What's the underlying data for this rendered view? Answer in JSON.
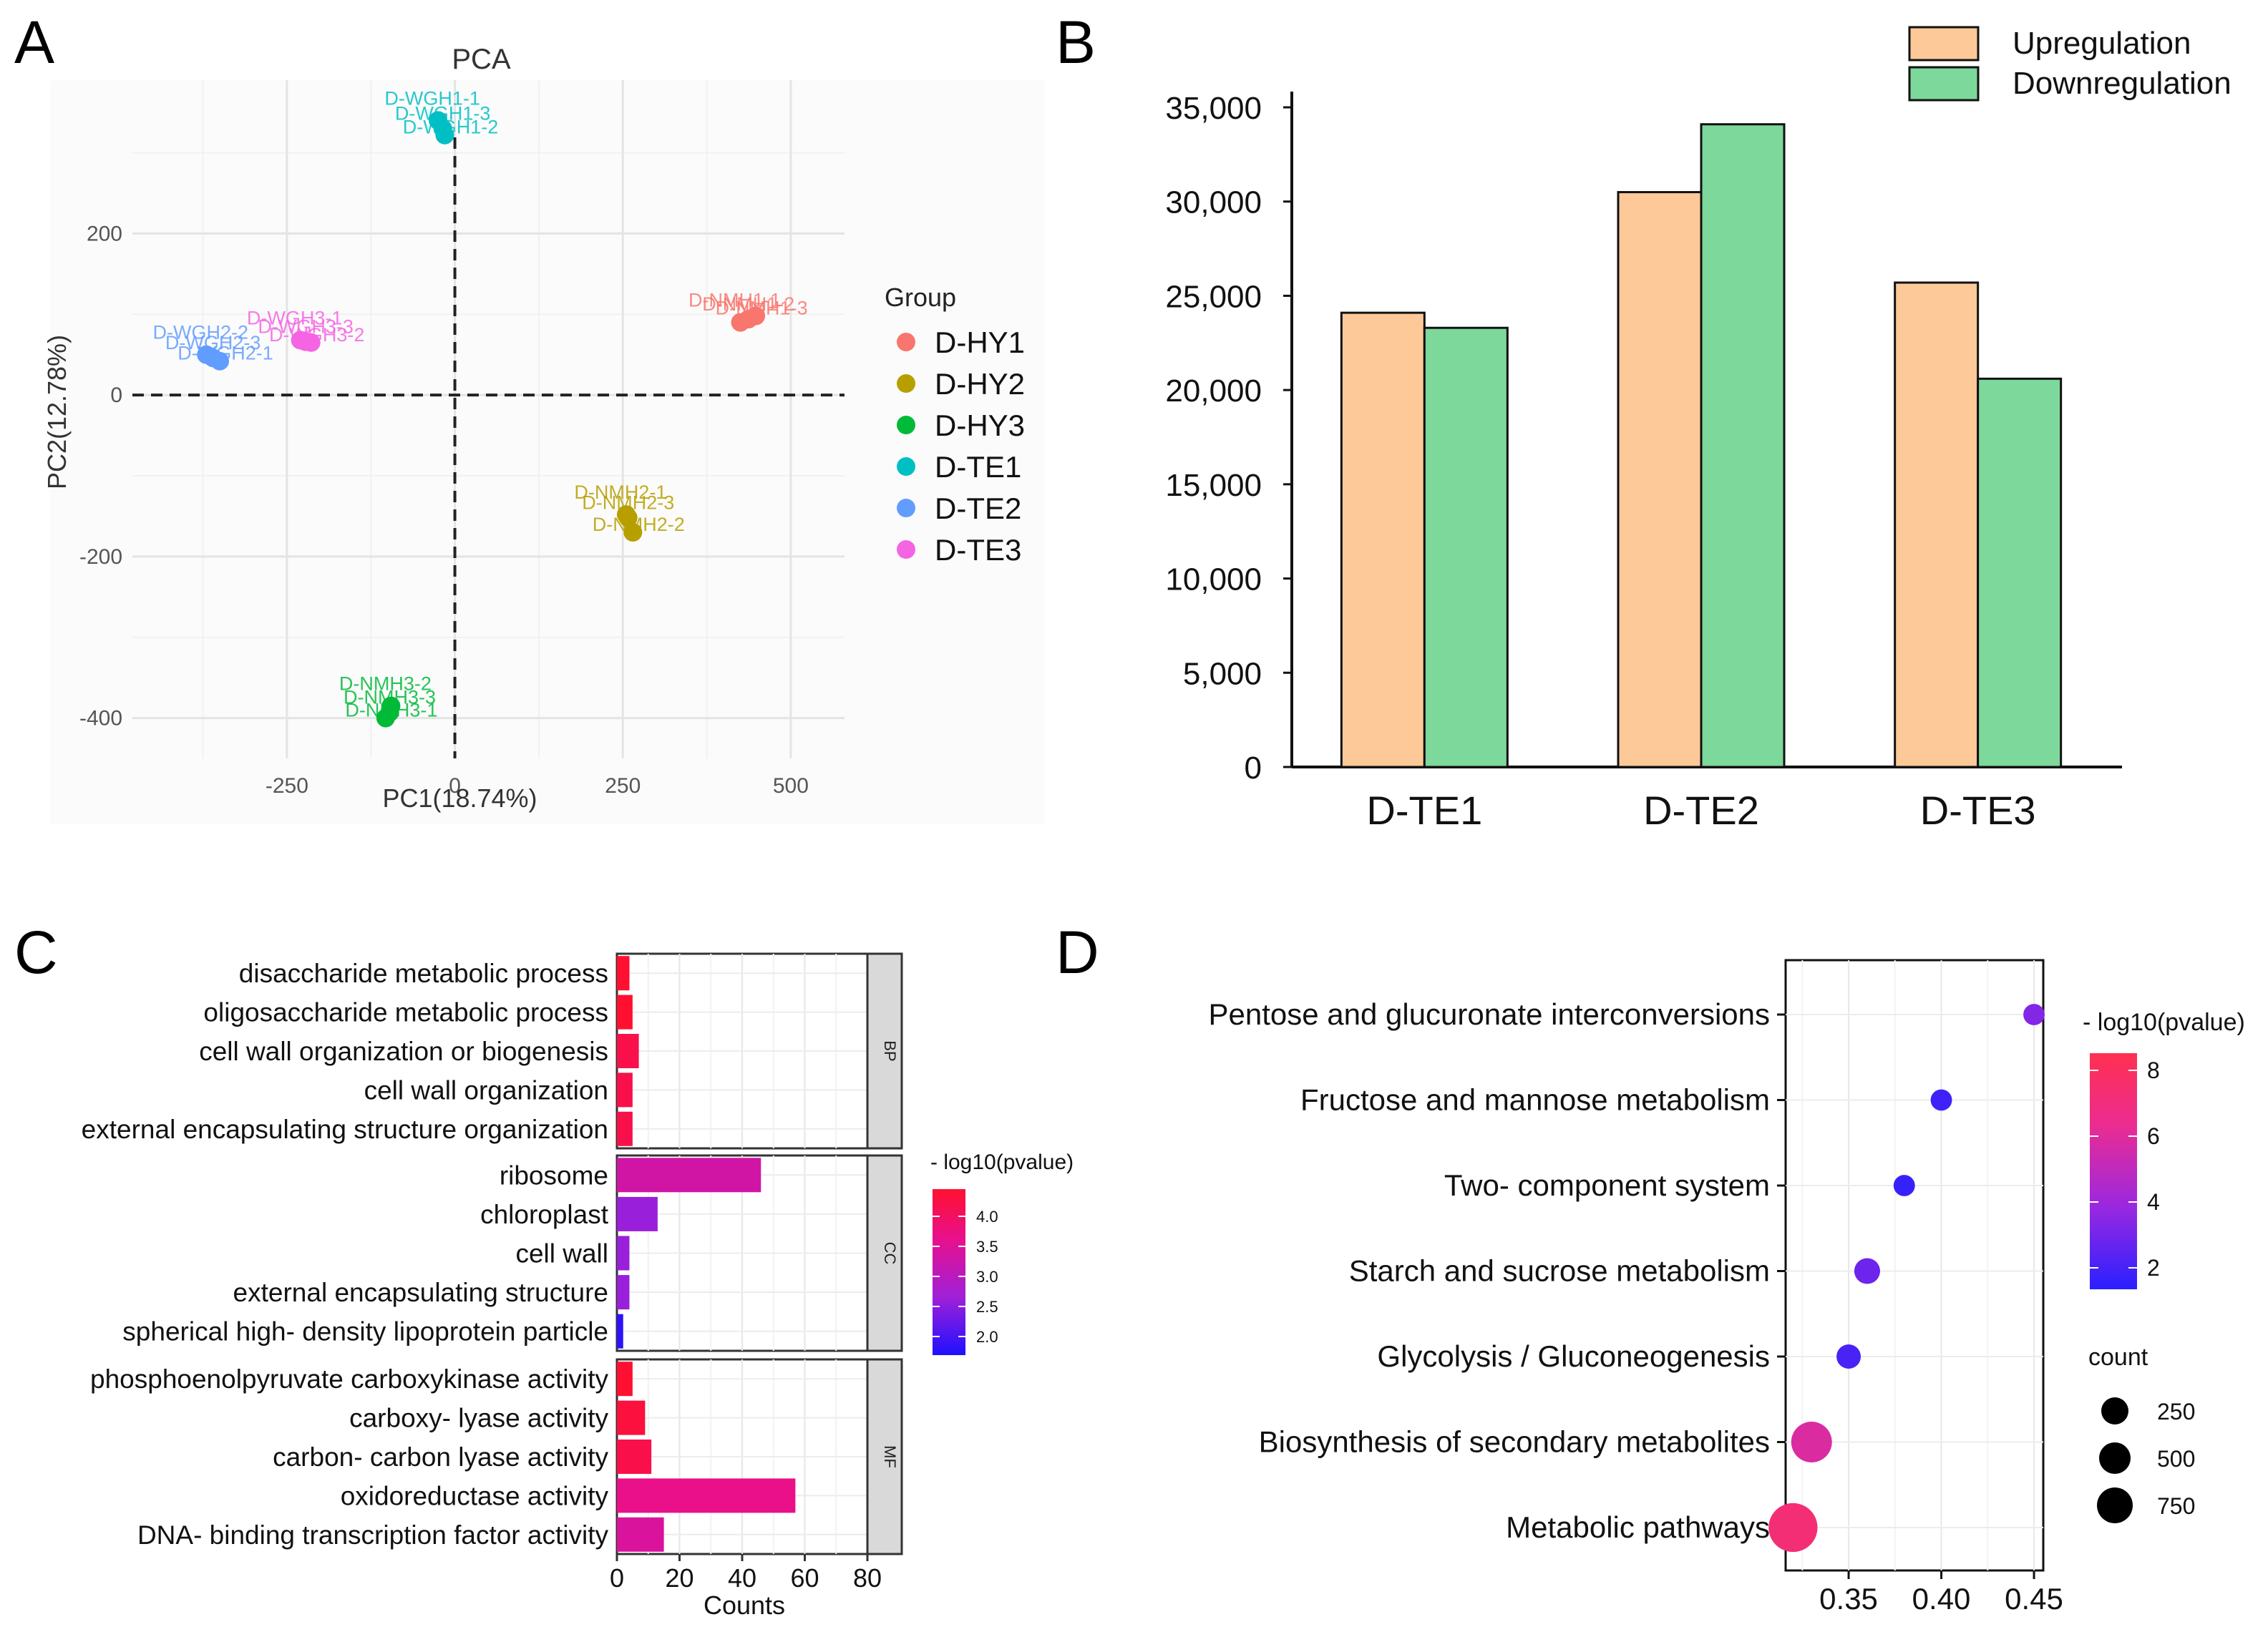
{
  "panel_labels": [
    "A",
    "B",
    "C",
    "D"
  ],
  "chart_data": [
    {
      "panel": "A",
      "type": "scatter",
      "title": "PCA",
      "xlabel": "PC1(18.74%)",
      "ylabel": "PC2(12.78%)",
      "xlim": [
        -480,
        580
      ],
      "ylim": [
        -450,
        390
      ],
      "xticks": [
        -250,
        0,
        250,
        500
      ],
      "yticks": [
        -400,
        -200,
        0,
        200
      ],
      "xtick_labels": [
        "-250",
        "0",
        "250",
        "500"
      ],
      "ytick_labels": [
        "-400",
        "-200",
        "0",
        "200"
      ],
      "legend_title": "Group",
      "groups": [
        {
          "name": "D-HY1",
          "color": "#f8766d",
          "points": [
            {
              "x": 425,
              "y": 90,
              "label": "D-NMH1-1"
            },
            {
              "x": 437,
              "y": 94,
              "label": "D-NMH1-2"
            },
            {
              "x": 448,
              "y": 98,
              "label": "D-NMH1-3"
            }
          ]
        },
        {
          "name": "D-HY2",
          "color": "#b79f00",
          "points": [
            {
              "x": 255,
              "y": -148,
              "label": "D-NMH2-1"
            },
            {
              "x": 258,
              "y": -152,
              "label": "D-NMH2-3"
            },
            {
              "x": 265,
              "y": -170,
              "label": "D-NMH2-2"
            }
          ]
        },
        {
          "name": "D-HY3",
          "color": "#00ba38",
          "points": [
            {
              "x": -95,
              "y": -385,
              "label": "D-NMH3-2"
            },
            {
              "x": -97,
              "y": -393,
              "label": "D-NMH3-3"
            },
            {
              "x": -103,
              "y": -400,
              "label": "D-NMH3-1"
            }
          ]
        },
        {
          "name": "D-TE1",
          "color": "#00bfc4",
          "points": [
            {
              "x": -25,
              "y": 340,
              "label": "D-WGH1-1"
            },
            {
              "x": -18,
              "y": 330,
              "label": "D-WGH1-3"
            },
            {
              "x": -15,
              "y": 322,
              "label": "D-WGH1-2"
            }
          ]
        },
        {
          "name": "D-TE2",
          "color": "#619cff",
          "points": [
            {
              "x": -370,
              "y": 50,
              "label": "D-WGH2-2"
            },
            {
              "x": -360,
              "y": 46,
              "label": "D-WGH2-3"
            },
            {
              "x": -350,
              "y": 42,
              "label": "D-WGH2-1"
            }
          ]
        },
        {
          "name": "D-TE3",
          "color": "#f564e3",
          "points": [
            {
              "x": -230,
              "y": 68,
              "label": "D-WGH3-1"
            },
            {
              "x": -222,
              "y": 66,
              "label": "D-WGH3-3"
            },
            {
              "x": -214,
              "y": 65,
              "label": "D-WGH3-2"
            }
          ]
        }
      ]
    },
    {
      "panel": "B",
      "type": "bar",
      "categories": [
        "D-TE1",
        "D-TE2",
        "D-TE3"
      ],
      "series": [
        {
          "name": "Upregulation",
          "color": "#fdc998",
          "values": [
            24100,
            30500,
            25700
          ]
        },
        {
          "name": "Downregulation",
          "color": "#7dd89b",
          "values": [
            23300,
            34100,
            20600
          ]
        }
      ],
      "ylim": [
        0,
        35000
      ],
      "yticks": [
        0,
        5000,
        10000,
        15000,
        20000,
        25000,
        30000,
        35000
      ],
      "ytick_labels": [
        "0",
        "5,000",
        "10,000",
        "15,000",
        "20,000",
        "25,000",
        "30,000",
        "35,000"
      ],
      "title": "",
      "xlabel": "",
      "ylabel": ""
    },
    {
      "panel": "C",
      "type": "bar",
      "orientation": "horizontal",
      "xlabel": "Counts",
      "xlim": [
        0,
        80
      ],
      "xticks": [
        0,
        20,
        40,
        60,
        80
      ],
      "xtick_labels": [
        "0",
        "20",
        "40",
        "60",
        "80"
      ],
      "color_legend_title": "- log10(pvalue)",
      "color_range": [
        1.8,
        4.2
      ],
      "color_ticks": [
        "4.0",
        "3.5",
        "3.0",
        "2.5",
        "2.0"
      ],
      "facets": [
        {
          "name": "BP",
          "terms": [
            {
              "label": "disaccharide metabolic process",
              "count": 4,
              "log10p": 4.2
            },
            {
              "label": "oligosaccharide metabolic process",
              "count": 5,
              "log10p": 4.2
            },
            {
              "label": "cell wall organization or biogenesis",
              "count": 7,
              "log10p": 4.0
            },
            {
              "label": "cell wall organization",
              "count": 5,
              "log10p": 4.0
            },
            {
              "label": "external encapsulating structure organization",
              "count": 5,
              "log10p": 4.0
            }
          ]
        },
        {
          "name": "CC",
          "terms": [
            {
              "label": "ribosome",
              "count": 46,
              "log10p": 3.2
            },
            {
              "label": "chloroplast",
              "count": 13,
              "log10p": 2.6
            },
            {
              "label": "cell wall",
              "count": 4,
              "log10p": 2.6
            },
            {
              "label": "external encapsulating structure",
              "count": 4,
              "log10p": 2.6
            },
            {
              "label": "spherical high- density lipoprotein particle",
              "count": 2,
              "log10p": 1.9
            }
          ]
        },
        {
          "name": "MF",
          "terms": [
            {
              "label": "phosphoenolpyruvate carboxykinase activity",
              "count": 5,
              "log10p": 4.2
            },
            {
              "label": "carboxy- lyase activity",
              "count": 9,
              "log10p": 4.1
            },
            {
              "label": "carbon- carbon lyase activity",
              "count": 11,
              "log10p": 4.0
            },
            {
              "label": "oxidoreductase activity",
              "count": 57,
              "log10p": 3.5
            },
            {
              "label": "DNA- binding transcription factor activity",
              "count": 15,
              "log10p": 3.3
            }
          ]
        }
      ]
    },
    {
      "panel": "D",
      "type": "scatter",
      "subtype": "bubble",
      "xlim": [
        0.316,
        0.455
      ],
      "xticks": [
        0.35,
        0.4,
        0.45
      ],
      "xtick_labels": [
        "0.35",
        "0.40",
        "0.45"
      ],
      "color_legend_title": "- log10(pvalue)",
      "color_range": [
        1.5,
        8.7
      ],
      "color_ticks": [
        "8",
        "6",
        "4",
        "2"
      ],
      "size_legend_title": "count",
      "size_legend": [
        "250",
        "500",
        "750"
      ],
      "pathways": [
        {
          "label": "Pentose and glucuronate interconversions",
          "x": 0.45,
          "log10p": 3.5,
          "count": 30
        },
        {
          "label": "Fructose and mannose metabolism",
          "x": 0.4,
          "log10p": 2.0,
          "count": 30
        },
        {
          "label": "Two- component system",
          "x": 0.38,
          "log10p": 1.8,
          "count": 30
        },
        {
          "label": "Starch and sucrose metabolism",
          "x": 0.36,
          "log10p": 3.0,
          "count": 80
        },
        {
          "label": "Glycolysis / Gluconeogenesis",
          "x": 0.35,
          "log10p": 2.2,
          "count": 60
        },
        {
          "label": "Biosynthesis of secondary metabolites",
          "x": 0.33,
          "log10p": 6.0,
          "count": 420
        },
        {
          "label": "Metabolic pathways",
          "x": 0.32,
          "log10p": 7.5,
          "count": 720
        }
      ]
    }
  ]
}
